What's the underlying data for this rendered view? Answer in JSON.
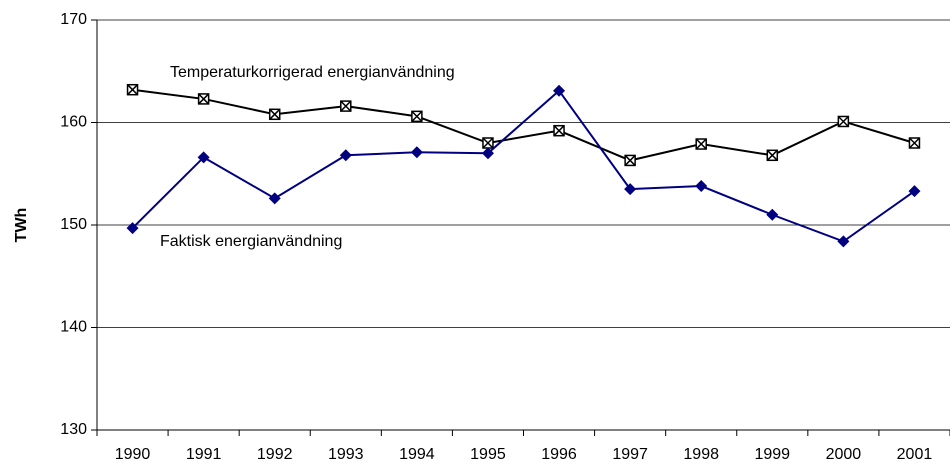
{
  "chart_data": {
    "type": "line",
    "categories": [
      "1990",
      "1991",
      "1992",
      "1993",
      "1994",
      "1995",
      "1996",
      "1997",
      "1998",
      "1999",
      "2000",
      "2001"
    ],
    "y_label": "TWh",
    "ylim": [
      130,
      170
    ],
    "yticks": [
      130,
      140,
      150,
      160,
      170
    ],
    "grid": true,
    "series": [
      {
        "name": "Temperaturkorrigerad energianvändning",
        "color": "#000000",
        "marker": "boxed-x",
        "values": [
          163.2,
          162.3,
          160.8,
          161.6,
          160.6,
          158.0,
          159.2,
          156.3,
          157.9,
          156.8,
          160.1,
          158.0
        ]
      },
      {
        "name": "Faktisk energianvändning",
        "color": "#000080",
        "marker": "diamond",
        "values": [
          149.7,
          156.6,
          152.6,
          156.8,
          157.1,
          157.0,
          163.1,
          153.5,
          153.8,
          151.0,
          148.4,
          153.3
        ]
      }
    ]
  }
}
